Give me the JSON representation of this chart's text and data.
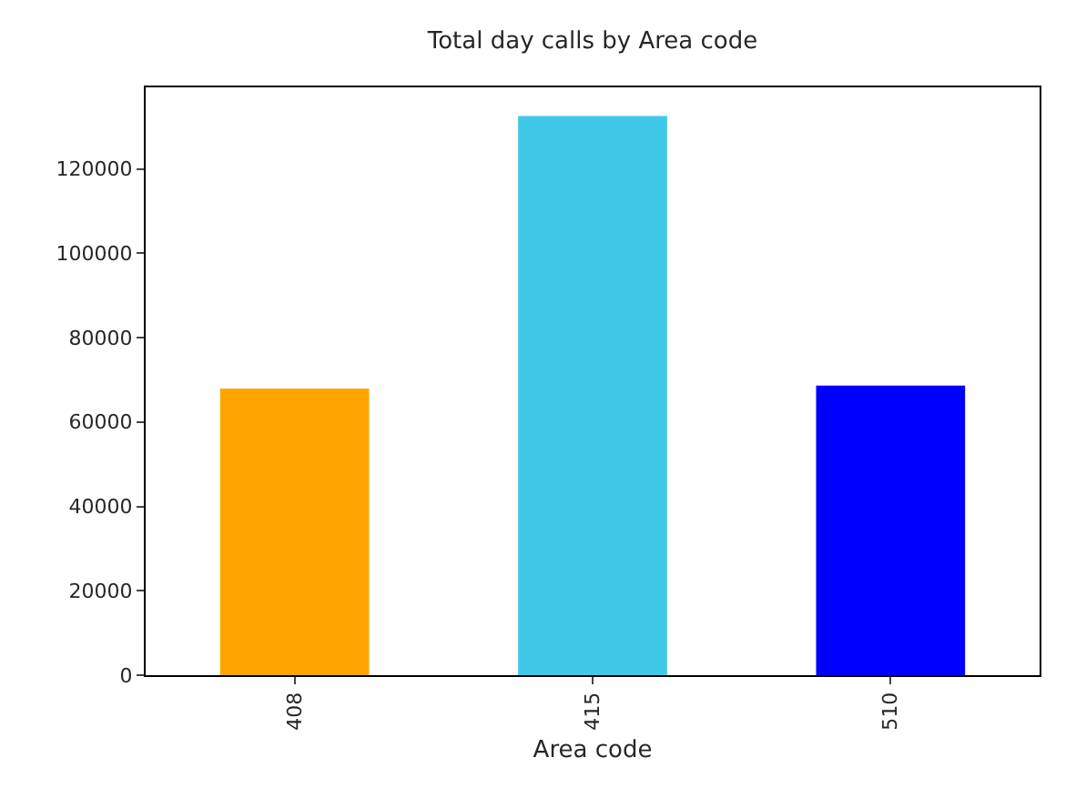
{
  "chart_data": {
    "type": "bar",
    "title": "Total day calls by Area code",
    "xlabel": "Area code",
    "categories": [
      "408",
      "415",
      "510"
    ],
    "values": [
      67900,
      132500,
      68600
    ],
    "colors": [
      "#ffa500",
      "#40c8e8",
      "#0000ff"
    ],
    "ylim": [
      0,
      139300
    ],
    "yticks": [
      0,
      20000,
      40000,
      60000,
      80000,
      100000,
      120000
    ]
  }
}
